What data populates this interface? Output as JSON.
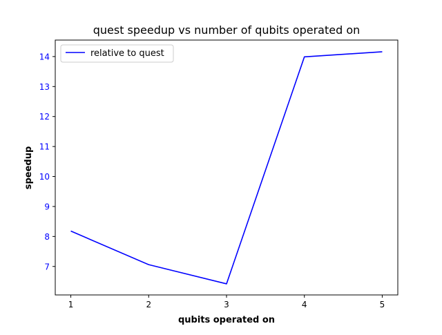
{
  "chart_data": {
    "type": "line",
    "title": "quest speedup vs number of qubits operated on",
    "xlabel": "qubits operated on",
    "ylabel": "speedup",
    "x": [
      1,
      2,
      3,
      4,
      5
    ],
    "xticks": [
      "1",
      "2",
      "3",
      "4",
      "5"
    ],
    "yticks": [
      "7",
      "8",
      "9",
      "10",
      "11",
      "12",
      "13",
      "14"
    ],
    "xlim": [
      0.8,
      5.2
    ],
    "ylim": [
      6.05,
      14.55
    ],
    "series": [
      {
        "name": "relative to quest",
        "values": [
          8.18,
          7.06,
          6.42,
          13.99,
          14.16
        ],
        "color": "#0000ff"
      }
    ],
    "legend": {
      "placement": "top-left"
    },
    "grid": false,
    "colors": {
      "ytick_labels": "#0000ff",
      "xtick_labels": "#000000",
      "axes": "#000000"
    }
  }
}
